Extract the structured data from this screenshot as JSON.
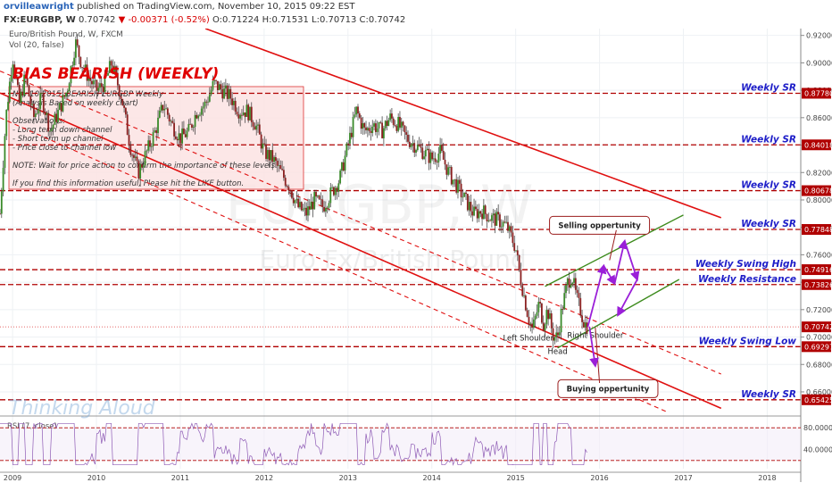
{
  "header": {
    "author": "orvilleawright",
    "published": "published on TradingView.com, November 10, 2015 09:22 EST",
    "symbol": "FX:EURGBP, W",
    "last": "0.70742",
    "change": "-0.00371 (-0.52%)",
    "open": "O:0.71224",
    "high": "H:0.71531",
    "low": "L:0.70713",
    "close": "C:0.70742"
  },
  "chart_data": {
    "type": "candlestick",
    "instrument_label": "Euro/British Pound, W, FXCM",
    "volume_label": "Vol (20, false)",
    "watermark_symbol": "EURGBP, W",
    "watermark_name": "Euro Fx/British Pound",
    "signature": "Thinking Aloud",
    "bias_title": "BIAS BEARISH (WEEKLY)",
    "note_lines": [
      "Nov 10 2015: BEARISH EURGBP Weekly",
      "(Analysis Based on weekly chart)",
      "",
      "Observations:",
      "- Long term down channel",
      "- Short term up channel",
      "- Price close to channel low",
      "",
      "NOTE: Wait for price action to confirm the importance of these levels.",
      "",
      "If you find this information useful, Please hit the LIKE button."
    ],
    "x_ticks": [
      "2009",
      "2010",
      "2011",
      "2012",
      "2013",
      "2014",
      "2015",
      "2016",
      "2017",
      "2018"
    ],
    "y_ticks": [
      "0.92000",
      "0.90000",
      "0.88000",
      "0.86000",
      "0.84000",
      "0.82000",
      "0.80000",
      "0.78000",
      "0.76000",
      "0.74000",
      "0.72000",
      "0.70000",
      "0.68000",
      "0.66000"
    ],
    "ylim": [
      0.645,
      0.925
    ],
    "xlim": [
      2008.85,
      2018.4
    ],
    "current_price": 0.70742,
    "levels": [
      {
        "label": "Weekly SR",
        "value": 0.8778
      },
      {
        "label": "Weekly SR",
        "value": 0.84018
      },
      {
        "label": "Weekly SR",
        "value": 0.80678
      },
      {
        "label": "Weekly SR",
        "value": 0.77848
      },
      {
        "label": "Weekly Swing High",
        "value": 0.74916
      },
      {
        "label": "Weekly Resistance",
        "value": 0.73826
      },
      {
        "label": "Weekly Swing Low",
        "value": 0.69297
      },
      {
        "label": "Weekly SR",
        "value": 0.65425
      }
    ],
    "level_tags": [
      "0.87780",
      "0.84018",
      "0.80678",
      "0.77848",
      "0.74916",
      "0.73826",
      "0.70742",
      "0.69297",
      "0.65425"
    ],
    "down_channel": {
      "upper": [
        [
          2011.3,
          0.925
        ],
        [
          2017.45,
          0.787
        ]
      ],
      "lower": [
        [
          2008.85,
          0.878
        ],
        [
          2017.45,
          0.648
        ]
      ],
      "mid_lines": [
        [
          [
            2008.85,
            0.894
          ],
          [
            2017.45,
            0.673
          ]
        ],
        [
          [
            2008.85,
            0.86
          ],
          [
            2017.45,
            0.628
          ]
        ]
      ]
    },
    "up_channel": {
      "upper": [
        [
          2015.35,
          0.737
        ],
        [
          2017.0,
          0.789
        ]
      ],
      "lower": [
        [
          2015.5,
          0.692
        ],
        [
          2016.95,
          0.742
        ]
      ]
    },
    "annotations": [
      {
        "text": "Selling oppertunity",
        "x": 2016.0,
        "y": 0.7815
      },
      {
        "text": "Buying oppertunity",
        "x": 2016.1,
        "y": 0.6623
      },
      {
        "text": "Left Shoulder",
        "x": 2015.15,
        "y": 0.6975
      },
      {
        "text": "Head",
        "x": 2015.5,
        "y": 0.6875
      },
      {
        "text": "Right Shoulder",
        "x": 2015.95,
        "y": 0.6995
      }
    ],
    "rsi": {
      "label": "RSI (7, close)",
      "y_ticks": [
        "80.0000",
        "40.0000"
      ],
      "ylim": [
        5,
        95
      ],
      "overbought": 80,
      "oversold": 20
    },
    "price_path": [
      [
        2008.85,
        0.79
      ],
      [
        2008.92,
        0.86
      ],
      [
        2009.0,
        0.905
      ],
      [
        2009.08,
        0.87
      ],
      [
        2009.15,
        0.89
      ],
      [
        2009.25,
        0.86
      ],
      [
        2009.35,
        0.875
      ],
      [
        2009.45,
        0.85
      ],
      [
        2009.55,
        0.865
      ],
      [
        2009.65,
        0.88
      ],
      [
        2009.75,
        0.915
      ],
      [
        2009.82,
        0.9
      ],
      [
        2009.9,
        0.89
      ],
      [
        2010.0,
        0.88
      ],
      [
        2010.1,
        0.885
      ],
      [
        2010.18,
        0.9
      ],
      [
        2010.3,
        0.875
      ],
      [
        2010.4,
        0.84
      ],
      [
        2010.5,
        0.82
      ],
      [
        2010.6,
        0.835
      ],
      [
        2010.7,
        0.85
      ],
      [
        2010.8,
        0.87
      ],
      [
        2010.9,
        0.855
      ],
      [
        2011.0,
        0.845
      ],
      [
        2011.1,
        0.85
      ],
      [
        2011.2,
        0.865
      ],
      [
        2011.3,
        0.87
      ],
      [
        2011.4,
        0.885
      ],
      [
        2011.5,
        0.88
      ],
      [
        2011.6,
        0.875
      ],
      [
        2011.7,
        0.865
      ],
      [
        2011.8,
        0.865
      ],
      [
        2011.9,
        0.855
      ],
      [
        2012.0,
        0.835
      ],
      [
        2012.1,
        0.83
      ],
      [
        2012.2,
        0.82
      ],
      [
        2012.3,
        0.81
      ],
      [
        2012.4,
        0.795
      ],
      [
        2012.5,
        0.79
      ],
      [
        2012.6,
        0.8
      ],
      [
        2012.7,
        0.795
      ],
      [
        2012.8,
        0.805
      ],
      [
        2012.9,
        0.815
      ],
      [
        2013.0,
        0.84
      ],
      [
        2013.1,
        0.865
      ],
      [
        2013.2,
        0.85
      ],
      [
        2013.3,
        0.855
      ],
      [
        2013.4,
        0.85
      ],
      [
        2013.5,
        0.86
      ],
      [
        2013.6,
        0.855
      ],
      [
        2013.7,
        0.845
      ],
      [
        2013.8,
        0.84
      ],
      [
        2013.9,
        0.835
      ],
      [
        2014.0,
        0.83
      ],
      [
        2014.1,
        0.835
      ],
      [
        2014.2,
        0.82
      ],
      [
        2014.3,
        0.81
      ],
      [
        2014.4,
        0.8
      ],
      [
        2014.5,
        0.79
      ],
      [
        2014.6,
        0.792
      ],
      [
        2014.7,
        0.787
      ],
      [
        2014.8,
        0.785
      ],
      [
        2014.9,
        0.78
      ],
      [
        2015.0,
        0.765
      ],
      [
        2015.05,
        0.745
      ],
      [
        2015.1,
        0.73
      ],
      [
        2015.15,
        0.715
      ],
      [
        2015.2,
        0.705
      ],
      [
        2015.28,
        0.725
      ],
      [
        2015.33,
        0.71
      ],
      [
        2015.38,
        0.72
      ],
      [
        2015.45,
        0.7
      ],
      [
        2015.5,
        0.7
      ],
      [
        2015.55,
        0.72
      ],
      [
        2015.62,
        0.74
      ],
      [
        2015.67,
        0.745
      ],
      [
        2015.72,
        0.73
      ],
      [
        2015.77,
        0.72
      ],
      [
        2015.82,
        0.71
      ],
      [
        2015.86,
        0.7074
      ]
    ]
  }
}
